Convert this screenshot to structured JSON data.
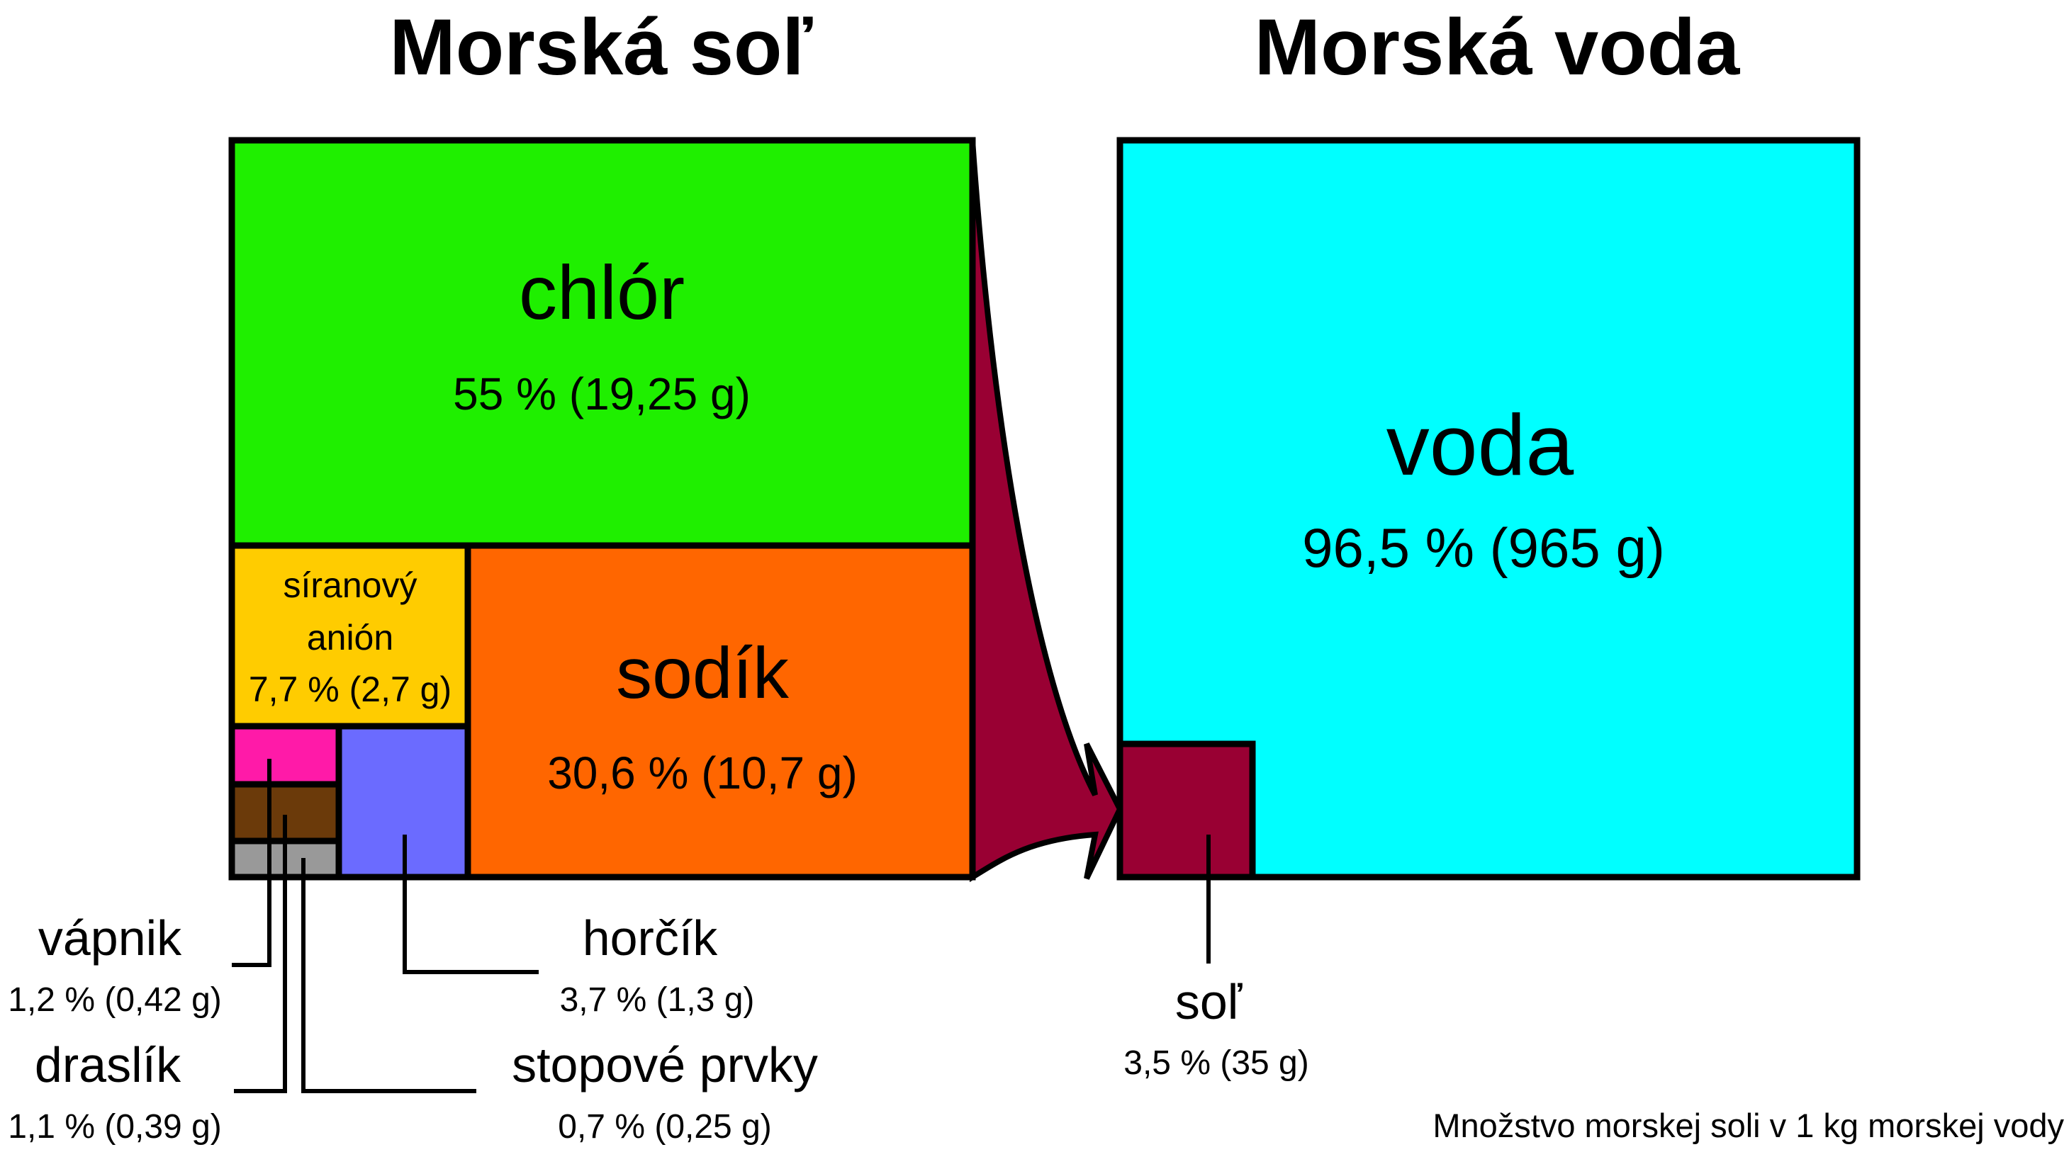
{
  "titles": {
    "salt": "Morská soľ",
    "water": "Morská voda"
  },
  "colors": {
    "chlor": "#1fef00",
    "sodik": "#ff6600",
    "siran": "#ffcc00",
    "vapnik": "#ff1aa8",
    "draslik": "#6b3a0a",
    "stopove": "#999999",
    "horcik": "#6b6bff",
    "voda": "#00ffff",
    "sol": "#990033",
    "outline": "#000000"
  },
  "salt": {
    "chlor": {
      "name": "chlór",
      "value": "55 % (19,25 g)"
    },
    "sodik": {
      "name": "sodík",
      "value": "30,6 % (10,7 g)"
    },
    "siran": {
      "name_line1": "síranový",
      "name_line2": "anión",
      "value": "7,7 % (2,7 g)"
    },
    "horcik": {
      "name": "horčík",
      "value": "3,7 % (1,3 g)"
    },
    "vapnik": {
      "name": "vápnik",
      "value": "1,2 % (0,42 g)"
    },
    "draslik": {
      "name": "draslík",
      "value": "1,1 % (0,39 g)"
    },
    "stopove": {
      "name": "stopové prvky",
      "value": "0,7 % (0,25 g)"
    }
  },
  "water": {
    "voda": {
      "name": "voda",
      "value": "96,5 % (965 g)"
    },
    "sol": {
      "name": "soľ",
      "value": "3,5 % (35 g)"
    }
  },
  "caption": "Množstvo morskej soli v 1 kg morskej vody"
}
